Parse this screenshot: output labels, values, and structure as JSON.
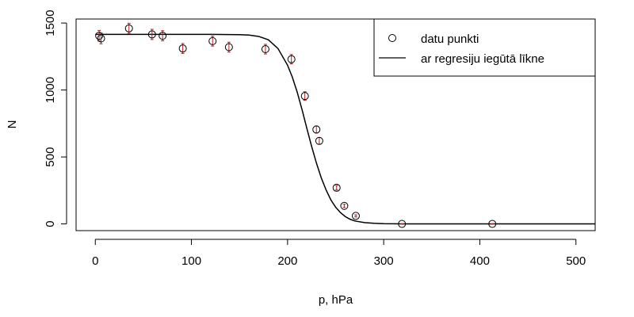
{
  "chart_data": {
    "type": "scatter",
    "title": "",
    "xlabel": "p, hPa",
    "ylabel": "N",
    "xlim": [
      -20,
      520
    ],
    "ylim": [
      -50,
      1530
    ],
    "x_ticks": [
      0,
      100,
      200,
      300,
      400,
      500
    ],
    "y_ticks": [
      0,
      500,
      1000,
      1500
    ],
    "grid": false,
    "legend_position": "top-right",
    "colors": {
      "points": "#000000",
      "error_bars": "#b22222",
      "curve": "#000000"
    },
    "series": [
      {
        "name": "datu punkti",
        "kind": "points",
        "marker": "open-circle",
        "x": [
          4,
          6,
          35,
          59,
          70,
          91,
          122,
          139,
          177,
          204,
          218,
          230,
          233,
          251,
          259,
          271,
          319,
          413
        ],
        "y": [
          1405,
          1385,
          1460,
          1415,
          1405,
          1310,
          1365,
          1320,
          1305,
          1230,
          955,
          705,
          620,
          270,
          135,
          60,
          0,
          0
        ],
        "error": [
          40,
          40,
          38,
          38,
          38,
          37,
          37,
          37,
          36,
          35,
          32,
          27,
          25,
          17,
          12,
          8,
          2,
          2
        ]
      },
      {
        "name": "ar regresiju iegūtā līkne",
        "kind": "line",
        "x": [
          0,
          20,
          40,
          60,
          80,
          100,
          120,
          140,
          150,
          160,
          170,
          180,
          190,
          200,
          205,
          210,
          215,
          220,
          225,
          230,
          235,
          240,
          245,
          250,
          255,
          260,
          265,
          270,
          280,
          290,
          300,
          320,
          350,
          400,
          450,
          520
        ],
        "y": [
          1415,
          1415,
          1415,
          1415,
          1415,
          1415,
          1415,
          1414,
          1413,
          1410,
          1400,
          1375,
          1310,
          1185,
          1095,
          985,
          855,
          715,
          580,
          455,
          345,
          255,
          180,
          125,
          85,
          55,
          35,
          22,
          10,
          5,
          2,
          0,
          0,
          0,
          0,
          0
        ]
      }
    ]
  }
}
